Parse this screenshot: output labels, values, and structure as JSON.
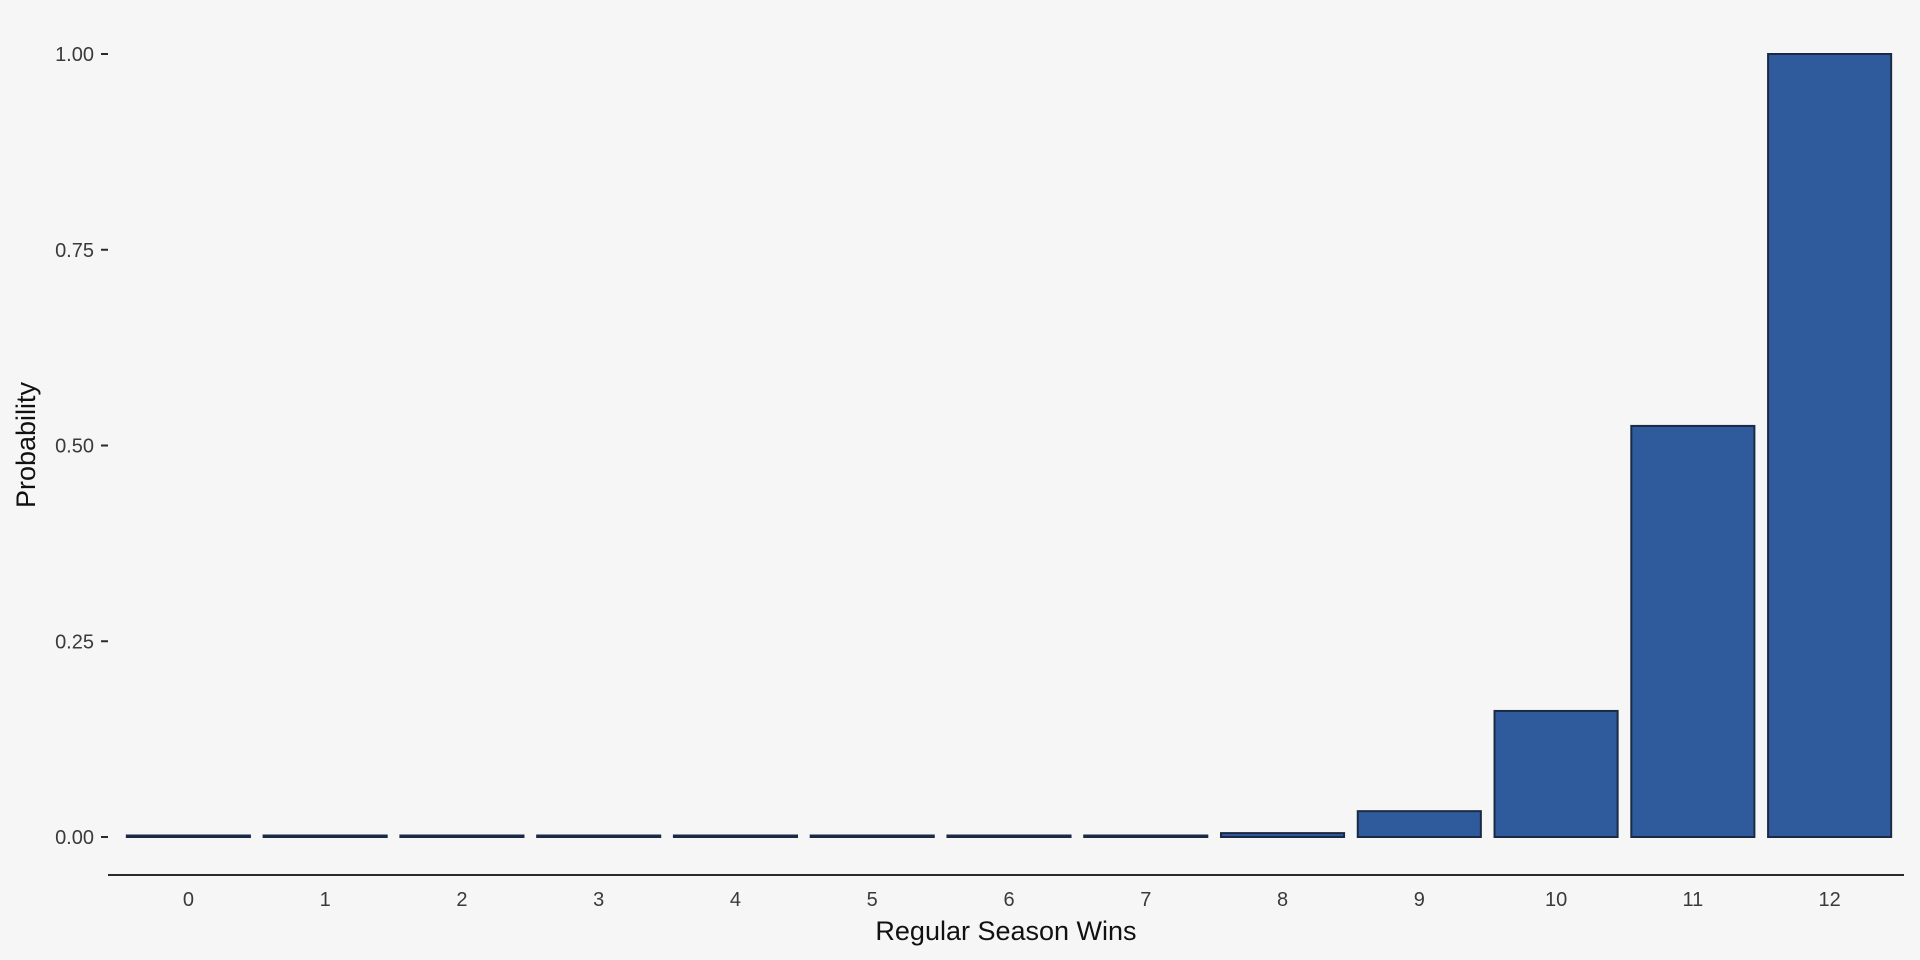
{
  "chart_data": {
    "type": "bar",
    "title": "",
    "xlabel": "Regular Season Wins",
    "ylabel": "Probability",
    "categories": [
      "0",
      "1",
      "2",
      "3",
      "4",
      "5",
      "6",
      "7",
      "8",
      "9",
      "10",
      "11",
      "12"
    ],
    "values": [
      0.0,
      0.0,
      0.0,
      0.0,
      0.0,
      0.0,
      0.0,
      0.001,
      0.005,
      0.033,
      0.161,
      0.525,
      1.0
    ],
    "ylim": [
      0,
      1
    ],
    "yticks": [
      0.0,
      0.25,
      0.5,
      0.75,
      1.0
    ],
    "ytick_labels": [
      "0.00",
      "0.25",
      "0.50",
      "0.75",
      "1.00"
    ],
    "grid": false,
    "legend": "none",
    "colors": {
      "background": "#f7f6f6",
      "bar_fill": "#2f5b9c",
      "bar_stroke": "#1b2a44",
      "axis": "#2a2a2a",
      "tick_text": "#3a3a3a",
      "title_text": "#111111"
    }
  }
}
